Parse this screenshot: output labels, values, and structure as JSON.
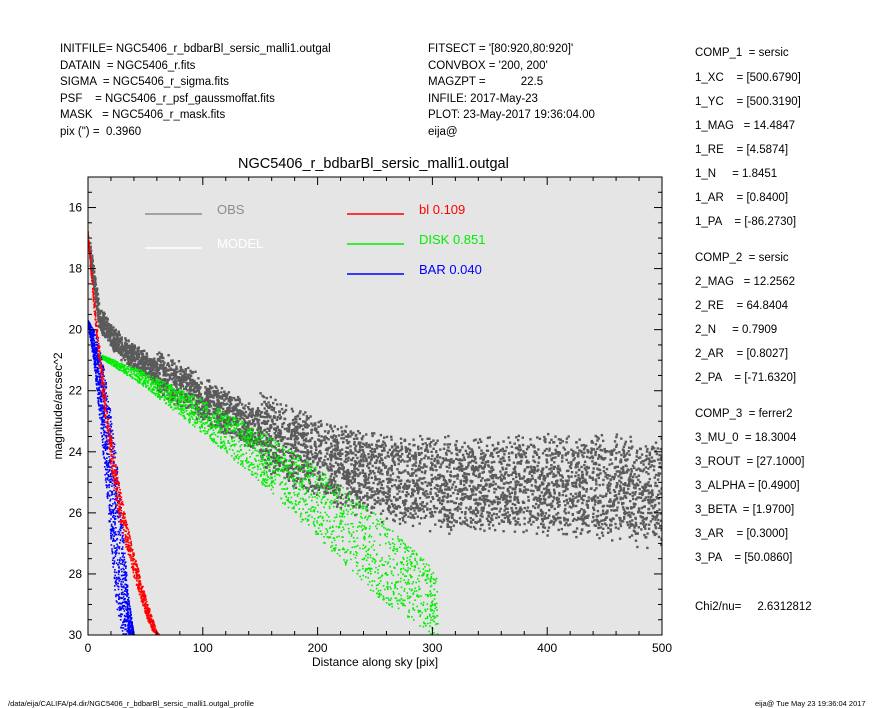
{
  "header_left": [
    "INITFILE= NGC5406_r_bdbarBl_sersic_malli1.outgal",
    "DATAIN  = NGC5406_r.fits",
    "SIGMA  = NGC5406_r_sigma.fits",
    "PSF    = NGC5406_r_psf_gaussmoffat.fits",
    "MASK   = NGC5406_r_mask.fits",
    "pix (\") =  0.3960"
  ],
  "header_mid": [
    "FITSECT = '[80:920,80:920]'",
    "CONVBOX = '200, 200'",
    "MAGZPT =           22.5",
    "INFILE: 2017-May-23",
    "PLOT: 23-May-2017 19:36:04.00",
    "eija@"
  ],
  "side_params": [
    "COMP_1  = sersic",
    "1_XC    = [500.6790]",
    "1_YC    = [500.3190]",
    "1_MAG   = 14.4847",
    "1_RE    = [4.5874]",
    "1_N     = 1.8451",
    "1_AR    = [0.8400]",
    "1_PA    = [-86.2730]",
    "COMP_2  = sersic",
    "2_MAG   = 12.2562",
    "2_RE    = 64.8404",
    "2_N     = 0.7909",
    "2_AR    = [0.8027]",
    "2_PA    = [-71.6320]",
    "COMP_3  = ferrer2",
    "3_MU_0  = 18.3004",
    "3_ROUT  = [27.1000]",
    "3_ALPHA = [0.4900]",
    "3_BETA  = [1.9700]",
    "3_AR    = [0.3000]",
    "3_PA    = [50.0860]",
    "Chi2/nu=     2.6312812"
  ],
  "footer_left": "/data/eija/CALIFA/p4.dir/NGC5406_r_bdbarBl_sersic_malli1.outgal_profile",
  "footer_right": "eija@   Tue May 23 19:36:04 2017",
  "colors": {
    "plot_bg": "#e5e5e5",
    "obs": "#5a5a5a",
    "obs_legend": "#8c8c8c",
    "model": "#ffffff",
    "bl": "#ff0000",
    "disk": "#00ee00",
    "bar": "#0000ff"
  },
  "chart_data": {
    "type": "scatter",
    "title": "NGC5406_r_bdbarBl_sersic_malli1.outgal",
    "xlabel": "Distance along sky [pix]",
    "ylabel": "magnitude/arcsec^2",
    "xlim": [
      0,
      500
    ],
    "ylim": [
      30,
      15
    ],
    "y_inverted": true,
    "xticks": [
      0,
      100,
      200,
      300,
      400,
      500
    ],
    "yticks": [
      16,
      18,
      20,
      22,
      24,
      26,
      28,
      30
    ],
    "grid": false,
    "legend": [
      {
        "label": "OBS",
        "value": ""
      },
      {
        "label": "MODEL",
        "value": ""
      },
      {
        "label": "bl",
        "value": "0.109"
      },
      {
        "label": "DISK",
        "value": "0.851"
      },
      {
        "label": "BAR",
        "value": "0.040"
      }
    ],
    "series": [
      {
        "name": "OBS",
        "x": [
          2,
          10,
          20,
          30,
          40,
          60,
          80,
          100,
          120,
          140,
          160,
          180,
          200,
          220,
          240,
          260,
          280,
          300,
          350,
          400,
          450,
          500
        ],
        "y": [
          17.5,
          19.6,
          20.2,
          20.6,
          20.9,
          21.4,
          21.8,
          22.3,
          22.7,
          23.1,
          23.5,
          23.9,
          24.2,
          24.5,
          24.7,
          24.9,
          25.0,
          25.1,
          25.1,
          25.1,
          25.2,
          25.3
        ],
        "spread": 1.6
      },
      {
        "name": "bl",
        "x": [
          0,
          5,
          10,
          15,
          20,
          25,
          30,
          35,
          40,
          45,
          50,
          55,
          60,
          62
        ],
        "y_upper": [
          16.8,
          18.8,
          20.5,
          22.0,
          23.4,
          24.6,
          25.6,
          26.5,
          27.3,
          28.0,
          28.7,
          29.3,
          29.9,
          30
        ],
        "y_lower": [
          16.8,
          19.2,
          21.2,
          23.0,
          24.5,
          25.7,
          26.6,
          27.4,
          28.1,
          28.7,
          29.3,
          29.8,
          30,
          30
        ]
      },
      {
        "name": "DISK",
        "x": [
          10,
          50,
          100,
          150,
          200,
          250,
          300,
          305
        ],
        "y_upper": [
          20.8,
          21.4,
          22.3,
          23.3,
          24.5,
          26.0,
          27.8,
          28.0
        ],
        "y_lower": [
          20.9,
          21.9,
          23.4,
          25.0,
          26.8,
          28.7,
          30.0,
          30.0
        ]
      },
      {
        "name": "BAR",
        "x": [
          0,
          5,
          10,
          15,
          20,
          25,
          30,
          35,
          40
        ],
        "y_upper": [
          19.7,
          20.0,
          20.6,
          21.5,
          22.7,
          24.3,
          26.3,
          28.6,
          30
        ],
        "y_lower": [
          19.8,
          21.0,
          22.8,
          24.8,
          27.0,
          29.3,
          30,
          30,
          30
        ]
      }
    ]
  }
}
